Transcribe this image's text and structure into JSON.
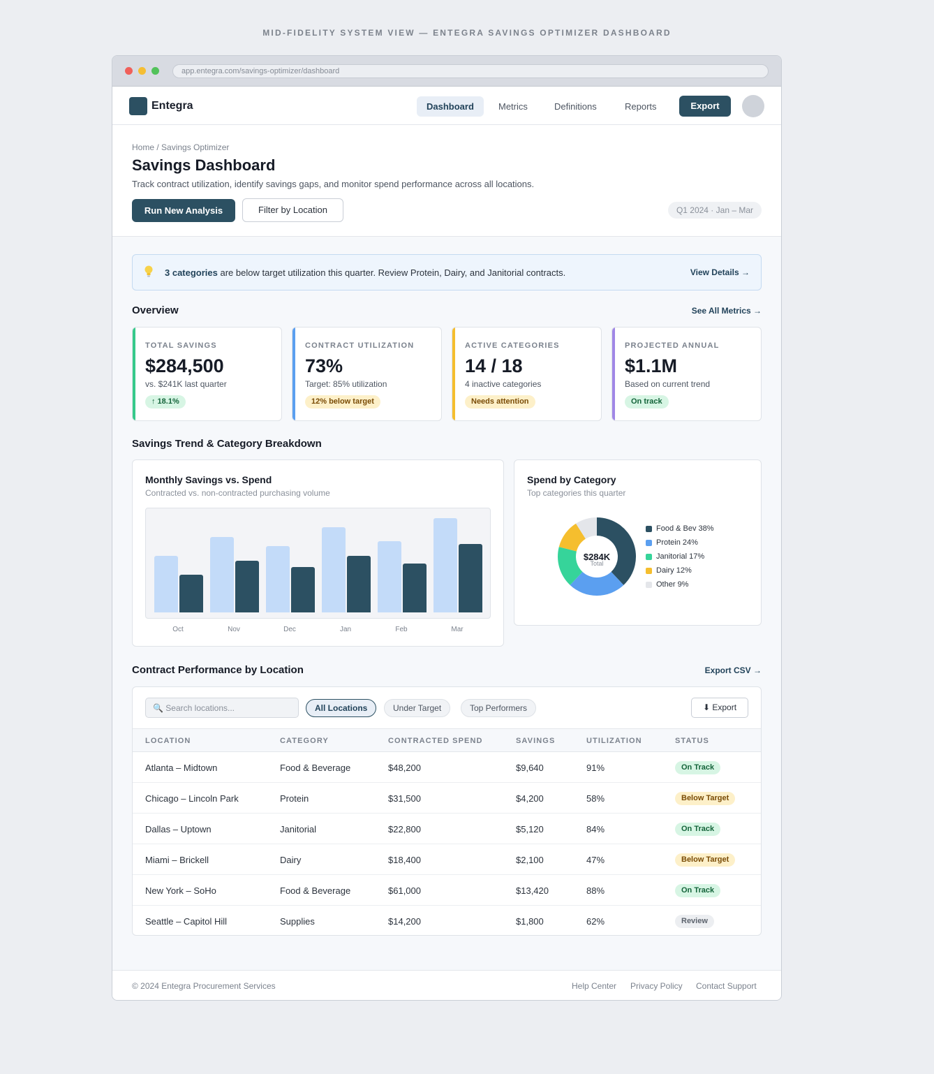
{
  "caption": "MID-FIDELITY SYSTEM VIEW — ENTEGRA SAVINGS OPTIMIZER DASHBOARD",
  "browser": {
    "url": "app.entegra.com/savings-optimizer/dashboard"
  },
  "nav": {
    "logo": "Entegra",
    "links": [
      "Dashboard",
      "Metrics",
      "Definitions",
      "Reports"
    ],
    "export": "Export"
  },
  "header": {
    "breadcrumb": "Home / Savings Optimizer",
    "title": "Savings Dashboard",
    "subtitle": "Track contract utilization, identify savings gaps, and monitor spend performance across all locations.",
    "primary_button": "Run New Analysis",
    "secondary_button": "Filter by Location",
    "period": "Q1 2024 · Jan – Mar"
  },
  "alert": {
    "icon": "lightbulb-icon",
    "bold": "3 categories",
    "text": " are below target utilization this quarter. Review Protein, Dairy, and Janitorial contracts.",
    "link": "View Details →"
  },
  "overview": {
    "title": "Overview",
    "link": "See All Metrics →",
    "kpis": [
      {
        "label": "TOTAL SAVINGS",
        "value": "$284,500",
        "sub": "vs. $241K last quarter",
        "badge": "↑ 18.1%",
        "accent": "#36c98b",
        "badge_style": "green"
      },
      {
        "label": "CONTRACT UTILIZATION",
        "value": "73%",
        "sub": "Target: 85% utilization",
        "badge": "12% below target",
        "accent": "#5b9ff0",
        "badge_style": "yellow"
      },
      {
        "label": "ACTIVE CATEGORIES",
        "value": "14 / 18",
        "sub": "4 inactive categories",
        "badge": "Needs attention",
        "accent": "#f5be2e",
        "badge_style": "yellow"
      },
      {
        "label": "PROJECTED ANNUAL",
        "value": "$1.1M",
        "sub": "Based on current trend",
        "badge": "On track",
        "accent": "#a087e6",
        "badge_style": "green"
      }
    ]
  },
  "trend_section": {
    "title": "Savings Trend & Category Breakdown"
  },
  "bar_card": {
    "title": "Monthly Savings vs. Spend",
    "subtitle": "Contracted vs. non-contracted purchasing volume"
  },
  "donut_card": {
    "title": "Spend by Category",
    "subtitle": "Top categories this quarter",
    "center_value": "$284K",
    "center_label": "Total"
  },
  "chart_data": [
    {
      "type": "bar",
      "categories": [
        "Oct",
        "Nov",
        "Dec",
        "Jan",
        "Feb",
        "Mar"
      ],
      "series": [
        {
          "values": [
            60,
            80,
            70,
            90,
            75,
            100
          ],
          "color": "#c3dbf9"
        },
        {
          "values": [
            40,
            55,
            48,
            60,
            52,
            72
          ],
          "color": "#2c5062"
        }
      ],
      "ylim": [
        0,
        110
      ],
      "grid": false
    },
    {
      "type": "pie",
      "labels": [
        "Food & Bev 38%",
        "Protein 24%",
        "Janitorial 17%",
        "Dairy 12%",
        "Other 9%"
      ],
      "values": [
        38,
        24,
        17,
        12,
        9
      ],
      "colors": [
        "#2c5062",
        "#5b9ff0",
        "#36d49a",
        "#f5be2e",
        "#e4e6ea"
      ],
      "legend": "right"
    }
  ],
  "table_section": {
    "title": "Contract Performance by Location",
    "link": "Export CSV →",
    "search_placeholder": "Search locations...",
    "chips": [
      "All Locations",
      "Under Target",
      "Top Performers"
    ],
    "export": "⬇ Export",
    "columns": [
      "LOCATION",
      "CATEGORY",
      "CONTRACTED SPEND",
      "SAVINGS",
      "UTILIZATION",
      "STATUS"
    ],
    "rows": [
      {
        "location": "Atlanta – Midtown",
        "category": "Food & Beverage",
        "spend": "$48,200",
        "savings": "$9,640",
        "util": "91%",
        "status": "On Track",
        "style": "green"
      },
      {
        "location": "Chicago – Lincoln Park",
        "category": "Protein",
        "spend": "$31,500",
        "savings": "$4,200",
        "util": "58%",
        "status": "Below Target",
        "style": "yellow"
      },
      {
        "location": "Dallas – Uptown",
        "category": "Janitorial",
        "spend": "$22,800",
        "savings": "$5,120",
        "util": "84%",
        "status": "On Track",
        "style": "green"
      },
      {
        "location": "Miami – Brickell",
        "category": "Dairy",
        "spend": "$18,400",
        "savings": "$2,100",
        "util": "47%",
        "status": "Below Target",
        "style": "yellow"
      },
      {
        "location": "New York – SoHo",
        "category": "Food & Beverage",
        "spend": "$61,000",
        "savings": "$13,420",
        "util": "88%",
        "status": "On Track",
        "style": "green"
      },
      {
        "location": "Seattle – Capitol Hill",
        "category": "Supplies",
        "spend": "$14,200",
        "savings": "$1,800",
        "util": "62%",
        "status": "Review",
        "style": "gray"
      }
    ]
  },
  "footer": {
    "copyright": "© 2024 Entegra Procurement Services",
    "links": [
      "Help Center",
      "Privacy Policy",
      "Contact Support"
    ]
  }
}
